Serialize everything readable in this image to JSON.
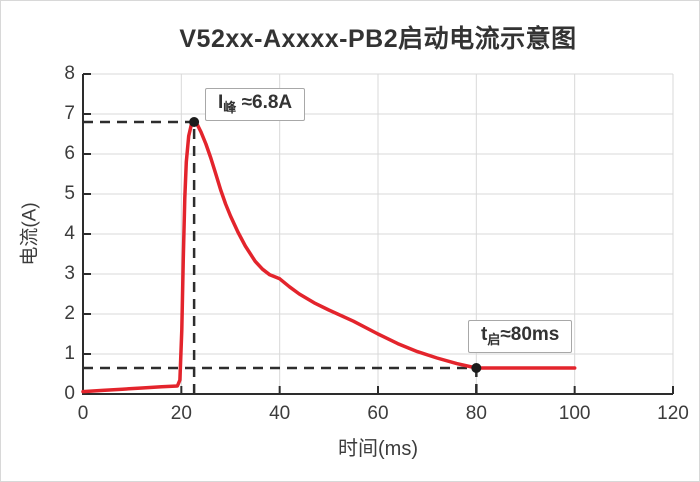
{
  "chart_data": {
    "type": "line",
    "title": "V52xx-Axxxx-PB2启动电流示意图",
    "xlabel": "时间(ms)",
    "ylabel": "电流(A)",
    "xlim": [
      0,
      120
    ],
    "ylim": [
      0,
      8
    ],
    "xticks": [
      0,
      20,
      40,
      60,
      80,
      100,
      120
    ],
    "yticks": [
      0,
      1,
      2,
      3,
      4,
      5,
      6,
      7,
      8
    ],
    "grid": true,
    "legend": false,
    "series": [
      {
        "name": "启动电流",
        "color": "#e3242c",
        "points": [
          [
            0,
            0.06
          ],
          [
            4,
            0.09
          ],
          [
            8,
            0.12
          ],
          [
            12,
            0.15
          ],
          [
            16,
            0.18
          ],
          [
            19.2,
            0.2
          ],
          [
            19.7,
            0.35
          ],
          [
            20.1,
            1.6
          ],
          [
            20.4,
            3.4
          ],
          [
            20.7,
            4.9
          ],
          [
            21.0,
            5.8
          ],
          [
            21.5,
            6.45
          ],
          [
            22.0,
            6.72
          ],
          [
            22.6,
            6.8
          ],
          [
            23.3,
            6.72
          ],
          [
            24,
            6.55
          ],
          [
            25,
            6.25
          ],
          [
            26,
            5.9
          ],
          [
            27,
            5.5
          ],
          [
            28,
            5.1
          ],
          [
            29,
            4.75
          ],
          [
            30,
            4.45
          ],
          [
            31.5,
            4.05
          ],
          [
            33,
            3.7
          ],
          [
            35,
            3.32
          ],
          [
            36.5,
            3.12
          ],
          [
            38,
            2.98
          ],
          [
            40,
            2.88
          ],
          [
            42,
            2.68
          ],
          [
            44,
            2.5
          ],
          [
            47,
            2.28
          ],
          [
            50,
            2.1
          ],
          [
            55,
            1.82
          ],
          [
            60,
            1.5
          ],
          [
            64,
            1.26
          ],
          [
            68,
            1.06
          ],
          [
            72,
            0.9
          ],
          [
            76,
            0.76
          ],
          [
            80,
            0.65
          ],
          [
            85,
            0.65
          ],
          [
            90,
            0.65
          ],
          [
            95,
            0.65
          ],
          [
            100,
            0.65
          ]
        ]
      }
    ],
    "markers": [
      {
        "x": 22.6,
        "y": 6.8,
        "label": "I峰≈6.8A"
      },
      {
        "x": 80,
        "y": 0.65,
        "label": "t启≈80ms"
      }
    ],
    "guides": [
      {
        "x1": 0,
        "y1": 6.8,
        "x2": 22.6,
        "y2": 6.8
      },
      {
        "x1": 22.6,
        "y1": 0,
        "x2": 22.6,
        "y2": 6.8
      },
      {
        "x1": 0,
        "y1": 0.65,
        "x2": 80,
        "y2": 0.65
      },
      {
        "x1": 80,
        "y1": 0,
        "x2": 80,
        "y2": 0.65
      }
    ]
  },
  "annotations": {
    "peak": {
      "pre": "I",
      "sub": "峰",
      "post": " ≈6.8A"
    },
    "tstart": {
      "pre": "t",
      "sub": "启",
      "post": "≈80ms"
    }
  },
  "colors": {
    "curve": "#e3242c",
    "axis": "#2d2d2d",
    "grid": "#d9d9d9",
    "guide": "#2d2d2d",
    "marker": "#1c1c1c",
    "text": "#3c3c3c"
  }
}
